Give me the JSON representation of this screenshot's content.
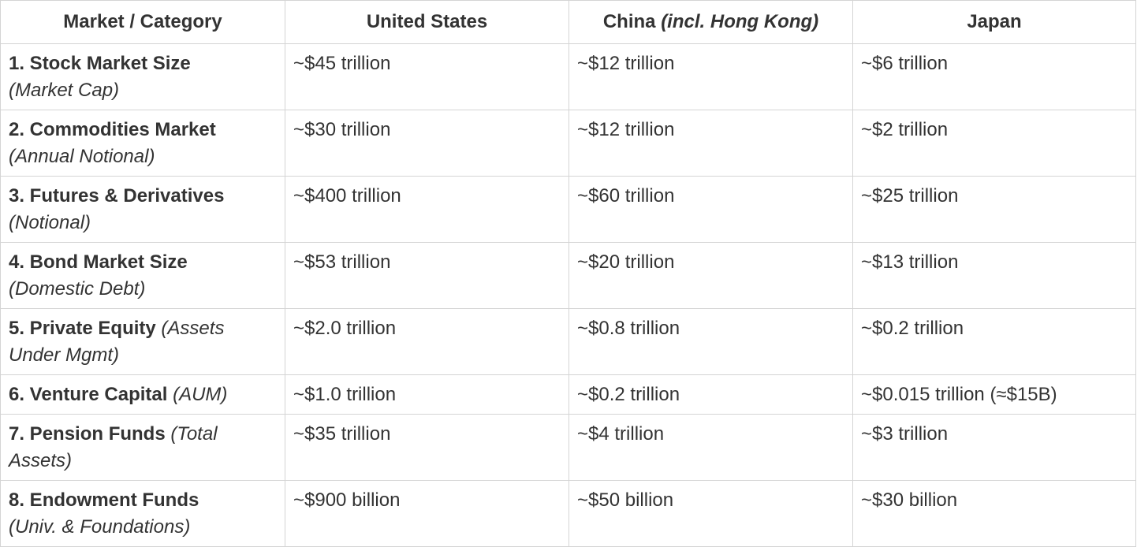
{
  "header": {
    "col0": "Market / Category",
    "col1": "United States",
    "col2_main": "China ",
    "col2_italic": "(incl. Hong Kong)",
    "col3": "Japan"
  },
  "rows": [
    {
      "title": "1. Stock Market Size",
      "sub": "(Market Cap)",
      "us": "~$45 trillion",
      "china": "~$12 trillion",
      "japan": "~$6 trillion"
    },
    {
      "title": "2. Commodities Market",
      "sub": "(Annual Notional)",
      "us": "~$30 trillion",
      "china": "~$12 trillion",
      "japan": "~$2 trillion"
    },
    {
      "title": "3. Futures & Derivatives",
      "sub": "(Notional)",
      "us": "~$400 trillion",
      "china": "~$60 trillion",
      "japan": "~$25 trillion"
    },
    {
      "title": "4. Bond Market Size",
      "sub": "(Domestic Debt)",
      "us": "~$53 trillion",
      "china": "~$20 trillion",
      "japan": "~$13 trillion"
    },
    {
      "title": "5. Private Equity",
      "sub": "(Assets Under Mgmt)",
      "us": "~$2.0 trillion",
      "china": "~$0.8 trillion",
      "japan": "~$0.2 trillion"
    },
    {
      "title": "6. Venture Capital",
      "sub": "(AUM)",
      "us": "~$1.0 trillion",
      "china": "~$0.2 trillion",
      "japan": "~$0.015 trillion (≈$15B)"
    },
    {
      "title": "7. Pension Funds",
      "sub": "(Total Assets)",
      "us": "~$35 trillion",
      "china": "~$4 trillion",
      "japan": "~$3 trillion"
    },
    {
      "title": "8. Endowment Funds",
      "sub": "(Univ. & Foundations)",
      "us": "~$900 billion",
      "china": "~$50 billion",
      "japan": "~$30 billion"
    }
  ]
}
